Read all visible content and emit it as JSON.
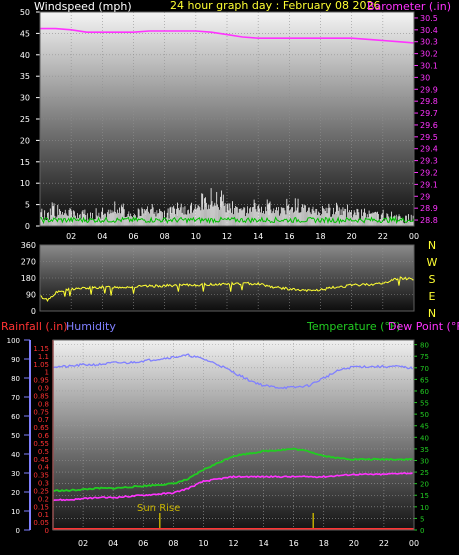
{
  "colors": {
    "wind": "#ffffff",
    "gust_green": "#00c000",
    "barometer": "#ff33ff",
    "direction": "#ffff33",
    "humidity": "#8080ff",
    "temperature": "#22cc22",
    "dewpoint": "#ff33ff",
    "rainfall": "#ff3333",
    "sunline": "#c8b400"
  },
  "top": {
    "left_label": "Windspeed (mph)",
    "center_label": "24 hour graph day : February 08 2026",
    "right_label": "Barometer (.in)"
  },
  "mid": {
    "compass": [
      "N",
      "W",
      "S",
      "E",
      "N"
    ]
  },
  "bottom": {
    "rain_label": "Rainfall (.in)",
    "humidity_label": "Humidity",
    "temp_label": "Temperature (°F)",
    "dew_label": "Dew Point (°F)",
    "sunrise_label": "Sun Rise"
  },
  "chart_data": [
    {
      "type": "line",
      "title": "24 hour graph day : February 08 2026",
      "x_ticks": [
        "02",
        "04",
        "06",
        "08",
        "10",
        "12",
        "14",
        "16",
        "18",
        "20",
        "22",
        "00"
      ],
      "xlim": [
        0,
        24
      ],
      "y_left": {
        "label": "Windspeed (mph)",
        "ticks": [
          0,
          5,
          10,
          15,
          20,
          25,
          30,
          35,
          40,
          45,
          50
        ],
        "lim": [
          0,
          50
        ]
      },
      "y_right": {
        "label": "Barometer (.in)",
        "ticks": [
          28.8,
          28.9,
          29,
          29.1,
          29.2,
          29.3,
          29.4,
          29.5,
          29.6,
          29.7,
          29.8,
          29.9,
          30,
          30.1,
          30.2,
          30.3,
          30.4,
          30.5
        ],
        "tick_labels": [
          "28.8",
          "28.9",
          "29",
          "29.1",
          "29.2",
          "29.3",
          "29.4",
          "29.5",
          "29.6",
          "29.7",
          "29.8",
          "29.9",
          "30",
          "30.1",
          "30.2",
          "30.3",
          "30.4",
          "30.5"
        ],
        "lim": [
          28.75,
          30.55
        ]
      },
      "series": [
        {
          "name": "Barometer (.in)",
          "axis": "right",
          "x": [
            0,
            1,
            2,
            3,
            4,
            5,
            6,
            7,
            8,
            9,
            10,
            11,
            12,
            13,
            14,
            15,
            16,
            17,
            18,
            19,
            20,
            21,
            22,
            23,
            24
          ],
          "values": [
            30.41,
            30.41,
            30.4,
            30.38,
            30.38,
            30.38,
            30.38,
            30.39,
            30.39,
            30.39,
            30.39,
            30.38,
            30.36,
            30.34,
            30.33,
            30.33,
            30.33,
            30.33,
            30.33,
            30.33,
            30.33,
            30.32,
            30.31,
            30.3,
            30.29
          ]
        },
        {
          "name": "Windspeed (mph)",
          "axis": "left",
          "x": [
            0,
            1,
            2,
            3,
            4,
            5,
            6,
            7,
            8,
            9,
            10,
            11,
            12,
            13,
            14,
            15,
            16,
            17,
            18,
            19,
            20,
            21,
            22,
            23,
            24
          ],
          "values": [
            1.5,
            2.5,
            3,
            2,
            2.5,
            3,
            2,
            3.5,
            2,
            3,
            4,
            5,
            4,
            3,
            4,
            3,
            3.5,
            4,
            3,
            3,
            2.5,
            2,
            2,
            1.5,
            1.5
          ],
          "gusts": [
            4,
            6,
            5,
            4,
            5,
            6,
            4,
            6,
            5,
            6,
            8,
            9,
            8,
            6,
            7,
            6,
            7,
            6,
            5,
            6,
            5,
            4,
            4,
            3,
            3
          ]
        }
      ]
    },
    {
      "type": "line",
      "title": "",
      "x_ticks": [
        "02",
        "04",
        "06",
        "08",
        "10",
        "12",
        "14",
        "16",
        "18",
        "20",
        "22",
        "00"
      ],
      "xlim": [
        0,
        24
      ],
      "y_left": {
        "label": "",
        "ticks": [
          0,
          90,
          180,
          270,
          360
        ],
        "lim": [
          0,
          360
        ]
      },
      "series": [
        {
          "name": "Wind Direction",
          "x": [
            0,
            0.5,
            1,
            1.5,
            2,
            3,
            4,
            5,
            6,
            7,
            8,
            9,
            10,
            11,
            12,
            13,
            14,
            15,
            16,
            17,
            18,
            19,
            20,
            21,
            22,
            23,
            24
          ],
          "values": [
            80,
            60,
            100,
            110,
            120,
            125,
            130,
            130,
            132,
            135,
            138,
            140,
            142,
            145,
            148,
            150,
            150,
            130,
            120,
            110,
            115,
            130,
            140,
            145,
            150,
            180,
            175
          ]
        }
      ]
    },
    {
      "type": "line",
      "title": "",
      "x_ticks": [
        "02",
        "04",
        "06",
        "08",
        "10",
        "12",
        "14",
        "16",
        "18",
        "20",
        "22",
        "00"
      ],
      "xlim": [
        0,
        24
      ],
      "y_left_outer": {
        "label": "Rainfall (.in)",
        "ticks": [
          0,
          0.05,
          0.1,
          0.15,
          0.2,
          0.25,
          0.3,
          0.35,
          0.4,
          0.45,
          0.5,
          0.55,
          0.6,
          0.65,
          0.7,
          0.75,
          0.8,
          0.85,
          0.9,
          0.95,
          1,
          1.05,
          1.1,
          1.15
        ],
        "tick_labels": [
          "0",
          "0.05",
          "0.1",
          "0.15",
          "0.2",
          "0.25",
          "0.3",
          "0.35",
          "0.4",
          "0.45",
          "0.5",
          "0.55",
          "0.6",
          "0.65",
          "0.7",
          "0.75",
          "0.8",
          "0.85",
          "0.9",
          "0.95",
          "1",
          "1.05",
          "1.1",
          "1.15"
        ],
        "lim": [
          0,
          1.2
        ]
      },
      "y_humidity": {
        "label": "Humidity",
        "ticks": [
          0,
          10,
          20,
          30,
          40,
          50,
          60,
          70,
          80,
          90,
          100
        ],
        "lim": [
          0,
          100
        ]
      },
      "y_right": {
        "label": "Temperature (°F) / Dew Point (°F)",
        "ticks": [
          0,
          5,
          10,
          15,
          20,
          25,
          30,
          35,
          40,
          45,
          50,
          55,
          60,
          65,
          70,
          75,
          80
        ],
        "lim": [
          0,
          82
        ]
      },
      "annotations": [
        {
          "text": "Sun Rise",
          "x": 7.1
        },
        {
          "text": "",
          "x": 17.3
        }
      ],
      "series": [
        {
          "name": "Humidity",
          "axis": "humidity",
          "x": [
            0,
            1,
            2,
            3,
            4,
            5,
            6,
            7,
            8,
            9,
            10,
            11,
            12,
            13,
            14,
            15,
            16,
            17,
            18,
            19,
            20,
            21,
            22,
            23,
            24
          ],
          "values": [
            86,
            86,
            87,
            87,
            88,
            88,
            89,
            90,
            91,
            92,
            90,
            87,
            83,
            79,
            76,
            75,
            75,
            76,
            80,
            84,
            86,
            86,
            86,
            86,
            85
          ]
        },
        {
          "name": "Temperature (°F)",
          "axis": "right",
          "x": [
            0,
            1,
            2,
            3,
            4,
            5,
            6,
            7,
            8,
            9,
            10,
            11,
            12,
            13,
            14,
            15,
            16,
            17,
            18,
            19,
            20,
            21,
            22,
            23,
            24
          ],
          "values": [
            17,
            17,
            17.5,
            18,
            18,
            18.5,
            19,
            19.5,
            20,
            22,
            26,
            29,
            32,
            33,
            34,
            34.5,
            35,
            34,
            32,
            31,
            30.5,
            30.5,
            30.5,
            30.5,
            30.5
          ]
        },
        {
          "name": "Dew Point (°F)",
          "axis": "right",
          "x": [
            0,
            1,
            2,
            3,
            4,
            5,
            6,
            7,
            8,
            9,
            10,
            11,
            12,
            13,
            14,
            15,
            16,
            17,
            18,
            19,
            20,
            21,
            22,
            23,
            24
          ],
          "values": [
            13,
            13,
            13.5,
            14,
            14,
            14.5,
            15,
            15.5,
            16,
            18,
            21,
            22,
            23,
            23,
            23,
            23,
            23,
            23,
            23,
            23.5,
            24,
            24,
            24,
            24.5,
            24.5
          ]
        },
        {
          "name": "Rainfall (.in)",
          "axis": "rain",
          "x": [
            0,
            24
          ],
          "values": [
            0,
            0
          ]
        }
      ]
    }
  ]
}
